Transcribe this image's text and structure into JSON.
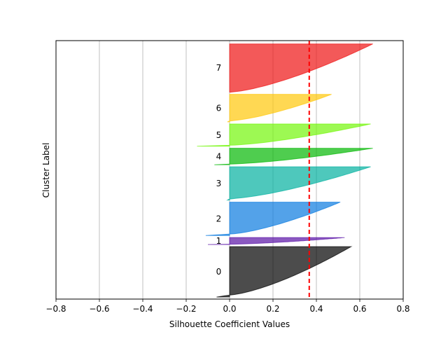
{
  "chart_data": {
    "type": "area",
    "title": "",
    "xlabel": "Silhouette Coefficient Values",
    "ylabel": "Cluster Label",
    "xlim": [
      -0.8,
      0.8
    ],
    "xticks": [
      -0.8,
      -0.6,
      -0.4,
      -0.2,
      0.0,
      0.2,
      0.4,
      0.6,
      0.8
    ],
    "xtick_labels": [
      "−0.8",
      "−0.6",
      "−0.4",
      "−0.2",
      "0.0",
      "0.2",
      "0.4",
      "0.6",
      "0.8"
    ],
    "grid": "x",
    "average_silhouette": 0.367,
    "average_line_color": "#ff0000",
    "clusters": [
      {
        "label": "0",
        "color": "#000000",
        "size": 245,
        "min": -0.06,
        "max": 0.56
      },
      {
        "label": "1",
        "color": "#5a13a7",
        "size": 34,
        "min": -0.1,
        "max": 0.53
      },
      {
        "label": "2",
        "color": "#0a7be0",
        "size": 162,
        "min": -0.11,
        "max": 0.51
      },
      {
        "label": "3",
        "color": "#03b0a0",
        "size": 162,
        "min": -0.01,
        "max": 0.65
      },
      {
        "label": "4",
        "color": "#04b804",
        "size": 80,
        "min": -0.07,
        "max": 0.66
      },
      {
        "label": "5",
        "color": "#74f70a",
        "size": 108,
        "min": -0.15,
        "max": 0.65
      },
      {
        "label": "6",
        "color": "#ffc80a",
        "size": 134,
        "min": -0.01,
        "max": 0.47
      },
      {
        "label": "7",
        "color": "#ee1212",
        "size": 235,
        "min": 0.0,
        "max": 0.66
      }
    ]
  }
}
